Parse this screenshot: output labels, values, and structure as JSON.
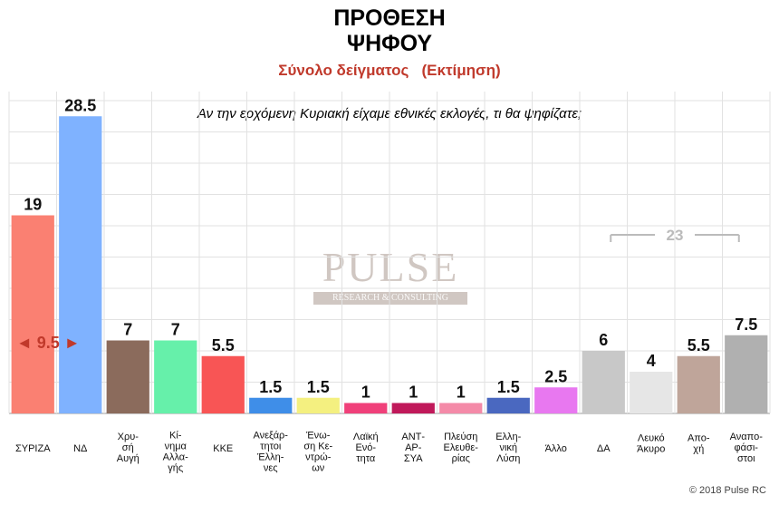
{
  "title_line1": "ΠΡΟΘΕΣΗ",
  "title_line2": "ΨΗΦΟΥ",
  "subtitle": "Σύνολο δείγματος   (Εκτίμηση)",
  "question": "Αν την ερχόμενη Κυριακή είχαμε εθνικές εκλογές, τι θα ψηφίζατε;",
  "copyright": "© 2018 Pulse RC",
  "watermark": {
    "name": "PULSE",
    "tagline": "RESEARCH & CONSULTING"
  },
  "colors": {
    "gap_arrow": "#c0392b",
    "bracket": "#bbbbbb"
  },
  "chart_data": {
    "type": "bar",
    "ylim": [
      0,
      30
    ],
    "grid": true,
    "categories": [
      [
        "ΣΥΡΙΖΑ"
      ],
      [
        "ΝΔ"
      ],
      [
        "Χρυ-",
        "σή",
        "Αυγή"
      ],
      [
        "Κί-",
        "νημα",
        "Αλλα-",
        "γής"
      ],
      [
        "ΚΚΕ"
      ],
      [
        "Ανεξάρ-",
        "τητοι",
        "Έλλη-",
        "νες"
      ],
      [
        "Ένω-",
        "ση Κε-",
        "ντρώ-",
        "ων"
      ],
      [
        "Λαϊκή",
        "Ενό-",
        "τητα"
      ],
      [
        "ΑΝΤ-",
        "ΑΡ-",
        "ΣΥΑ"
      ],
      [
        "Πλεύση",
        "Ελευθε-",
        "ρίας"
      ],
      [
        "Ελλη-",
        "νική",
        "Λύση"
      ],
      [
        "Άλλο"
      ],
      [
        "ΔΑ"
      ],
      [
        "Λευκό",
        "Άκυρο"
      ],
      [
        "Απο-",
        "χή"
      ],
      [
        "Αναπο-",
        "φάσι-",
        "στοι"
      ]
    ],
    "values": [
      19,
      28.5,
      7,
      7,
      5.5,
      1.5,
      1.5,
      1,
      1,
      1,
      1.5,
      2.5,
      6,
      4,
      5.5,
      7.5
    ],
    "value_labels": [
      "19",
      "28.5",
      "7",
      "7",
      "5.5",
      "1.5",
      "1.5",
      "1",
      "1",
      "1",
      "1.5",
      "2.5",
      "6",
      "4",
      "5.5",
      "7.5"
    ],
    "bar_colors": [
      "#fa8072",
      "#7fb2ff",
      "#8b6b5c",
      "#66f0aa",
      "#f85555",
      "#3f8ee8",
      "#f4f080",
      "#f0407a",
      "#c0195a",
      "#f48aa8",
      "#4a68c0",
      "#e878f0",
      "#c8c8c8",
      "#e6e6e6",
      "#bfa59a",
      "#b0b0b0"
    ],
    "annotations": {
      "gap": {
        "text": "9.5",
        "left_arrow": "◄",
        "right_arrow": "►"
      },
      "bracket": {
        "text": "23",
        "from_category": 12,
        "to_category": 15
      }
    }
  }
}
